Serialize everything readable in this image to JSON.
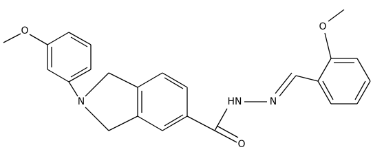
{
  "atoms": [
    {
      "label": "O"
    },
    {
      "label": "N"
    },
    {
      "label": "HN"
    },
    {
      "label": "N"
    },
    {
      "label": "O"
    },
    {
      "label": "O"
    }
  ]
}
